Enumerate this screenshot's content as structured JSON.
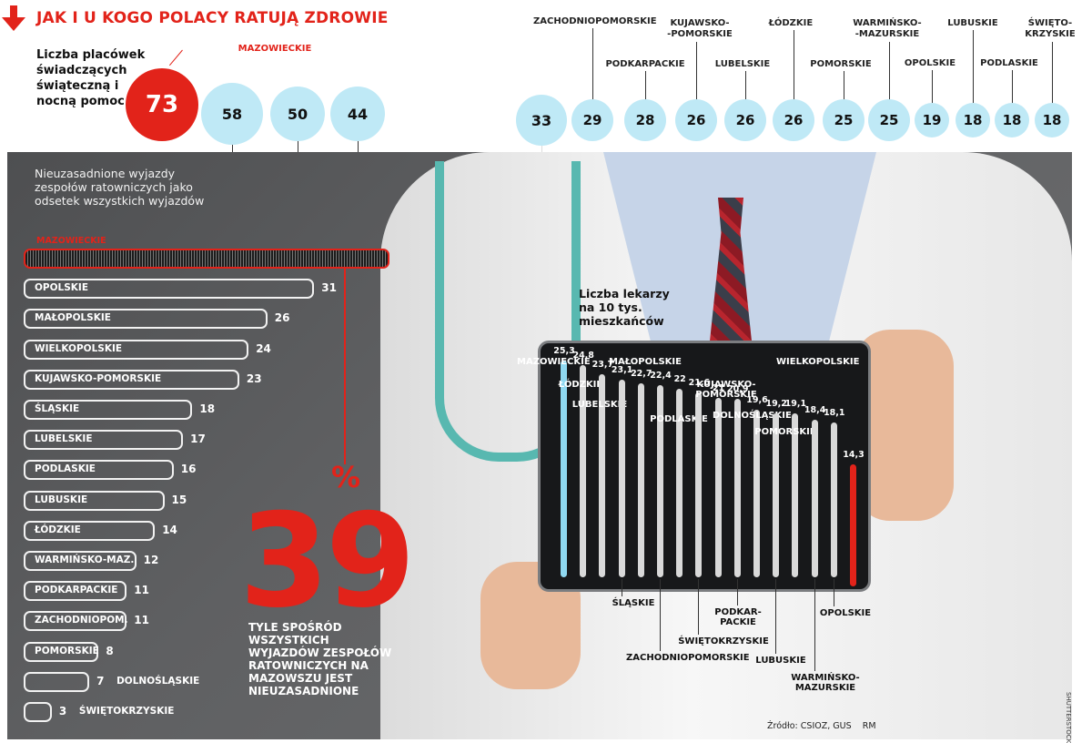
{
  "title": "JAK I U KOGO POLACY RATUJĄ ZDROWIE",
  "colors": {
    "accent_red": "#e2231a",
    "circle_blue": "#bfe9f6",
    "bar_grey": "#d9d9d9",
    "bar_blue": "#8fd8f0"
  },
  "credit": "SHUTTERSTOCK",
  "source": "Źródło: CSIOZ, GUS",
  "author": "RM",
  "big_number": "39",
  "big_number_unit": "%",
  "big_number_note": "TYLE SPOŚRÓD WSZYSTKICH WYJAZDÓW ZESPOŁÓW RATOWNICZYCH NA MAZOWSZU JEST NIEUZASADNIONE",
  "chart_data": [
    {
      "type": "bubble",
      "title": "Liczba placówek świadczących świąteczną i nocną pomoc",
      "categories": [
        "MAZOWIECKIE",
        "ŚLĄSKIE",
        "MAŁOPOLSKIE",
        "WIELKOPOLSKIE",
        "DOLNOŚLĄSKIE",
        "ZACHODNIOPOMORSKIE",
        "PODKARPACKIE",
        "KUJAWSKO-POMORSKIE",
        "LUBELSKIE",
        "ŁÓDZKIE",
        "POMORSKIE",
        "WARMIŃSKO-MAZURSKIE",
        "OPOLSKIE",
        "LUBUSKIE",
        "PODLASKIE",
        "ŚWIĘTOKRZYSKIE"
      ],
      "values": [
        73,
        58,
        50,
        44,
        33,
        29,
        28,
        26,
        26,
        26,
        25,
        25,
        19,
        18,
        18,
        18
      ]
    },
    {
      "type": "bar",
      "orientation": "horizontal",
      "title": "Nieuzasadnione wyjazdy zespołów ratowniczych jako odsetek wszystkich wyjazdów",
      "categories": [
        "MAZOWIECKIE",
        "OPOLSKIE",
        "MAŁOPOLSKIE",
        "WIELKOPOLSKIE",
        "KUJAWSKO-POMORSKIE",
        "ŚLĄSKIE",
        "LUBELSKIE",
        "PODLASKIE",
        "LUBUSKIE",
        "ŁÓDZKIE",
        "WARMIŃSKO-MAZ.",
        "PODKARPACKIE",
        "ZACHODNIOPOM.",
        "POMORSKIE",
        "DOLNOŚLĄSKIE",
        "ŚWIĘTOKRZYSKIE"
      ],
      "values": [
        39,
        31,
        26,
        24,
        23,
        18,
        17,
        16,
        15,
        14,
        12,
        11,
        11,
        8,
        7,
        3
      ]
    },
    {
      "type": "bar",
      "orientation": "vertical",
      "title": "Liczba lekarzy na 10 tys. mieszkańców",
      "categories": [
        "MAZOWIECKIE",
        "ŁÓDZKIE",
        "LUBELSKIE",
        "ŚLĄSKIE",
        "MAŁOPOLSKIE",
        "ZACHODNIOPOMORSKIE",
        "PODLASKIE",
        "ŚWIĘTOKRZYSKIE",
        "KUJAWSKO-POMORSKIE",
        "PODKARPACKIE",
        "DOLNOŚLĄSKIE",
        "LUBUSKIE",
        "POMORSKIE",
        "WARMIŃSKO-MAZURSKIE",
        "OPOLSKIE",
        "WIELKOPOLSKIE"
      ],
      "value_labels": [
        "25,3",
        "24,8",
        "23,7",
        "23,1",
        "22,7",
        "22,4",
        "22",
        "21,6",
        "21",
        "20,9",
        "19,6",
        "19,2",
        "19,1",
        "18,4",
        "18,1",
        "14,3"
      ],
      "values": [
        25.3,
        24.8,
        23.7,
        23.1,
        22.7,
        22.4,
        22,
        21.6,
        21,
        20.9,
        19.6,
        19.2,
        19.1,
        18.4,
        18.1,
        14.3
      ],
      "name_labels": [
        "MAZOWIECKIE",
        "ŁÓDZKIE",
        "LUBELSKIE",
        "ŚLĄSKIE",
        "MAŁOPOLSKIE",
        "ZACHODNIOPOMORSKIE",
        "PODLASKIE",
        "ŚWIĘTOKRZYSKIE",
        "KUJAWSKO-\nPOMORSKIE",
        "PODKAR-\nPACKIE",
        "DOLNOŚLĄSKIE",
        "LUBUSKIE",
        "POMORSKIE",
        "WARMIŃSKO-\nMAZURSKIE",
        "OPOLSKIE",
        "WIELKOPOLSKIE"
      ]
    }
  ]
}
